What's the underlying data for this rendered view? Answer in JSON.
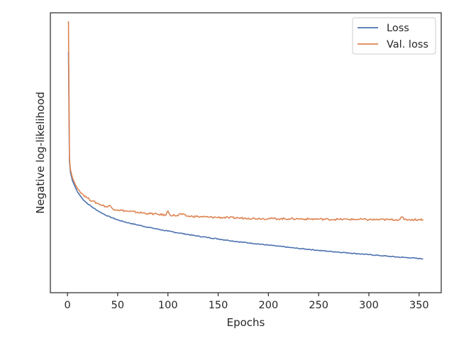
{
  "chart_data": {
    "type": "line",
    "title": "",
    "xlabel": "Epochs",
    "ylabel": "Negative log-likelihood",
    "xlim": [
      -17,
      372
    ],
    "ylim": [
      0.0,
      1.0
    ],
    "y_tick_labels_shown": false,
    "x_ticks": [
      0,
      50,
      100,
      150,
      200,
      250,
      300,
      350
    ],
    "grid": false,
    "legend_position": "top-right",
    "series": [
      {
        "name": "Loss",
        "color": "#4c72b0",
        "points": [
          [
            1,
            0.86
          ],
          [
            2,
            0.47
          ],
          [
            3,
            0.43
          ],
          [
            5,
            0.4
          ],
          [
            8,
            0.375
          ],
          [
            10,
            0.36
          ],
          [
            15,
            0.335
          ],
          [
            20,
            0.318
          ],
          [
            25,
            0.305
          ],
          [
            30,
            0.293
          ],
          [
            35,
            0.283
          ],
          [
            40,
            0.274
          ],
          [
            45,
            0.267
          ],
          [
            50,
            0.26
          ],
          [
            60,
            0.25
          ],
          [
            70,
            0.242
          ],
          [
            80,
            0.234
          ],
          [
            90,
            0.227
          ],
          [
            100,
            0.22
          ],
          [
            110,
            0.214
          ],
          [
            120,
            0.208
          ],
          [
            130,
            0.202
          ],
          [
            140,
            0.197
          ],
          [
            150,
            0.192
          ],
          [
            160,
            0.187
          ],
          [
            170,
            0.182
          ],
          [
            180,
            0.178
          ],
          [
            190,
            0.174
          ],
          [
            200,
            0.17
          ],
          [
            210,
            0.166
          ],
          [
            220,
            0.162
          ],
          [
            230,
            0.158
          ],
          [
            240,
            0.155
          ],
          [
            250,
            0.151
          ],
          [
            260,
            0.148
          ],
          [
            270,
            0.145
          ],
          [
            280,
            0.142
          ],
          [
            290,
            0.139
          ],
          [
            300,
            0.136
          ],
          [
            310,
            0.133
          ],
          [
            320,
            0.13
          ],
          [
            330,
            0.127
          ],
          [
            340,
            0.125
          ],
          [
            350,
            0.122
          ],
          [
            354,
            0.121
          ]
        ]
      },
      {
        "name": "Val. loss",
        "color": "#dd8452",
        "points": [
          [
            1,
            0.97
          ],
          [
            2,
            0.48
          ],
          [
            3,
            0.44
          ],
          [
            5,
            0.41
          ],
          [
            8,
            0.385
          ],
          [
            10,
            0.372
          ],
          [
            15,
            0.352
          ],
          [
            20,
            0.338
          ],
          [
            25,
            0.327
          ],
          [
            30,
            0.319
          ],
          [
            35,
            0.312
          ],
          [
            40,
            0.306
          ],
          [
            42,
            0.312
          ],
          [
            45,
            0.3
          ],
          [
            50,
            0.296
          ],
          [
            60,
            0.291
          ],
          [
            70,
            0.287
          ],
          [
            80,
            0.283
          ],
          [
            90,
            0.28
          ],
          [
            98,
            0.277
          ],
          [
            100,
            0.292
          ],
          [
            102,
            0.278
          ],
          [
            110,
            0.275
          ],
          [
            112,
            0.282
          ],
          [
            120,
            0.273
          ],
          [
            130,
            0.272
          ],
          [
            140,
            0.27
          ],
          [
            150,
            0.269
          ],
          [
            160,
            0.268
          ],
          [
            170,
            0.267
          ],
          [
            180,
            0.266
          ],
          [
            190,
            0.265
          ],
          [
            200,
            0.265
          ],
          [
            210,
            0.264
          ],
          [
            220,
            0.264
          ],
          [
            230,
            0.264
          ],
          [
            240,
            0.263
          ],
          [
            250,
            0.263
          ],
          [
            260,
            0.262
          ],
          [
            270,
            0.262
          ],
          [
            280,
            0.262
          ],
          [
            290,
            0.262
          ],
          [
            300,
            0.261
          ],
          [
            310,
            0.261
          ],
          [
            320,
            0.261
          ],
          [
            330,
            0.261
          ],
          [
            333,
            0.271
          ],
          [
            335,
            0.261
          ],
          [
            340,
            0.261
          ],
          [
            350,
            0.261
          ],
          [
            354,
            0.262
          ]
        ]
      }
    ]
  }
}
